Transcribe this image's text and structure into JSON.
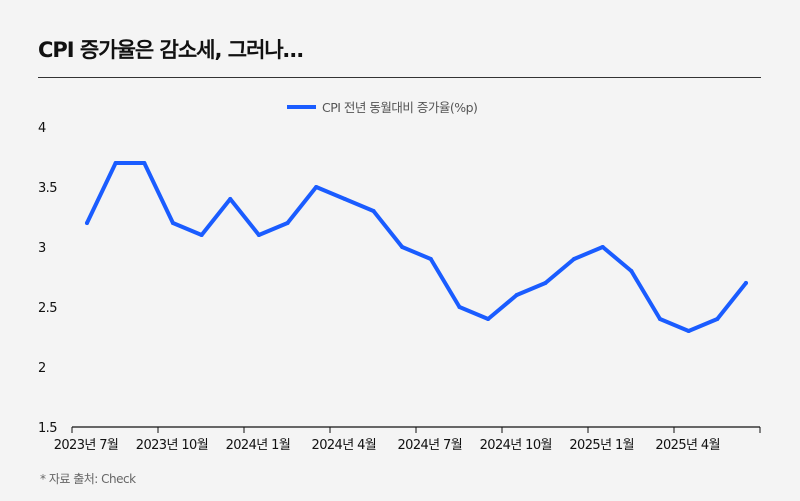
{
  "title": "CPI 증가율은 감소세, 그러나…",
  "source": "* 자료 출처: Check",
  "colors": {
    "series": "#1a5cff",
    "axis": "#111111",
    "background": "#f4f4f4"
  },
  "chart_data": {
    "type": "line",
    "title": "CPI 증가율은 감소세, 그러나…",
    "x": [
      "2023-07",
      "2023-08",
      "2023-09",
      "2023-10",
      "2023-11",
      "2023-12",
      "2024-01",
      "2024-02",
      "2024-03",
      "2024-04",
      "2024-05",
      "2024-06",
      "2024-07",
      "2024-08",
      "2024-09",
      "2024-10",
      "2024-11",
      "2024-12",
      "2025-01",
      "2025-02",
      "2025-03",
      "2025-04",
      "2025-05",
      "2025-06"
    ],
    "series": [
      {
        "name": "CPI 전년 동월대비 증가율(%p)",
        "values": [
          3.2,
          3.7,
          3.7,
          3.2,
          3.1,
          3.4,
          3.1,
          3.2,
          3.5,
          3.4,
          3.3,
          3.0,
          2.9,
          2.5,
          2.4,
          2.6,
          2.7,
          2.9,
          3.0,
          2.8,
          2.4,
          2.3,
          2.4,
          2.7
        ]
      }
    ],
    "x_tick_labels": [
      "2023년 7월",
      "2023년 10월",
      "2024년 1월",
      "2024년 4월",
      "2024년 7월",
      "2024년 10월",
      "2025년 1월",
      "2025년 4월"
    ],
    "y_tick_labels": [
      "1.5",
      "2",
      "2.5",
      "3",
      "3.5",
      "4"
    ],
    "ylim": [
      1.5,
      4
    ],
    "grid": false,
    "legend": "top-center",
    "xlabel": "",
    "ylabel": ""
  }
}
